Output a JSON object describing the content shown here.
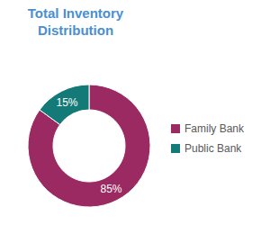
{
  "chart_data": {
    "type": "donut",
    "title": "Total Inventory Distribution",
    "categories": [
      "Family Bank",
      "Public Bank"
    ],
    "values": [
      85,
      15
    ],
    "value_labels": [
      "85%",
      "15%"
    ],
    "colors": [
      "#9b2a62",
      "#137a78"
    ],
    "data_labels": true,
    "legend": "right"
  }
}
